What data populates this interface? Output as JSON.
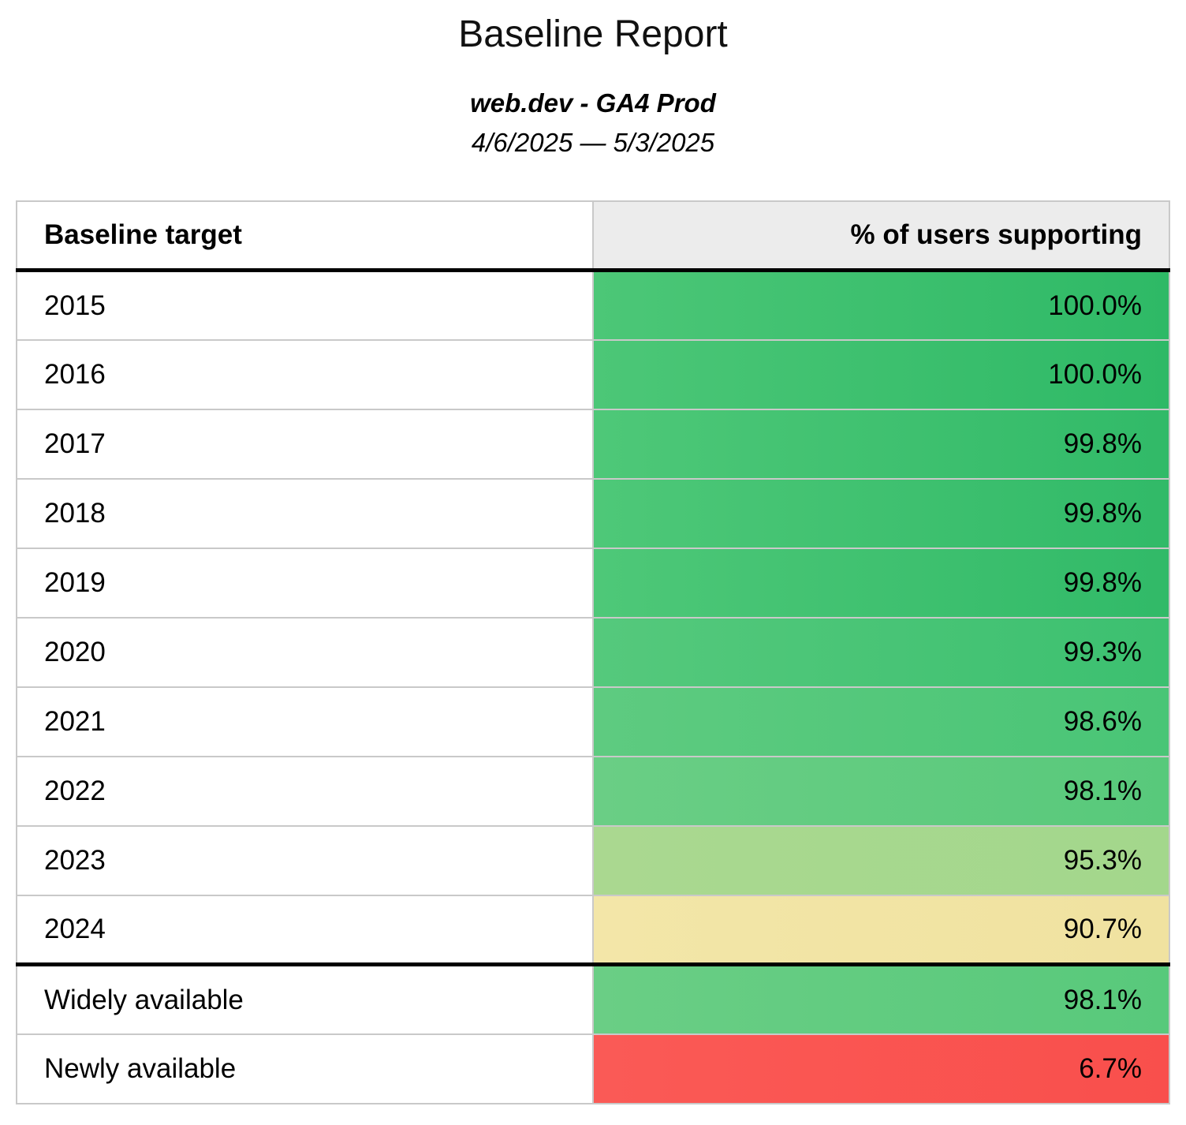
{
  "header": {
    "title": "Baseline Report",
    "subtitle": "web.dev - GA4 Prod",
    "date_range": "4/6/2025 — 5/3/2025"
  },
  "table": {
    "columns": [
      {
        "label": "Baseline target"
      },
      {
        "label": "% of users supporting"
      }
    ],
    "rows": [
      {
        "label": "2015",
        "value": "100.0%",
        "bg": [
          "#4cc777",
          "#2eb966"
        ]
      },
      {
        "label": "2016",
        "value": "100.0%",
        "bg": [
          "#4cc777",
          "#2eb966"
        ]
      },
      {
        "label": "2017",
        "value": "99.8%",
        "bg": [
          "#4ec878",
          "#31ba68"
        ]
      },
      {
        "label": "2018",
        "value": "99.8%",
        "bg": [
          "#4ec878",
          "#31ba68"
        ]
      },
      {
        "label": "2019",
        "value": "99.8%",
        "bg": [
          "#4ec878",
          "#31ba68"
        ]
      },
      {
        "label": "2020",
        "value": "99.3%",
        "bg": [
          "#55c97c",
          "#3cc070"
        ]
      },
      {
        "label": "2021",
        "value": "98.6%",
        "bg": [
          "#5ecb80",
          "#49c576"
        ]
      },
      {
        "label": "2022",
        "value": "98.1%",
        "bg": [
          "#6ace85",
          "#58c97b"
        ]
      },
      {
        "label": "2023",
        "value": "95.3%",
        "bg": [
          "#aad890",
          "#a3d78c"
        ]
      },
      {
        "label": "2024",
        "value": "90.7%",
        "bg": [
          "#f3e6a8",
          "#f0e2a0"
        ]
      },
      {
        "label": "Widely available",
        "value": "98.1%",
        "bg": [
          "#6ace85",
          "#58c97b"
        ]
      },
      {
        "label": "Newly available",
        "value": "6.7%",
        "bg": [
          "#fa5a56",
          "#f94f4c"
        ]
      }
    ]
  },
  "colors": {
    "header_background": "#ececec",
    "grid_border": "#c9c9c9",
    "section_divider": "#000000",
    "green_high": "#3cc26f",
    "yellow_mid": "#f2e5a5",
    "red_low": "#f95551"
  },
  "chart_data": {
    "type": "table",
    "title": "Baseline Report",
    "subtitle": "web.dev - GA4 Prod",
    "date_range": "4/6/2025 — 5/3/2025",
    "columns": [
      "Baseline target",
      "% of users supporting"
    ],
    "categories": [
      "2015",
      "2016",
      "2017",
      "2018",
      "2019",
      "2020",
      "2021",
      "2022",
      "2023",
      "2024",
      "Widely available",
      "Newly available"
    ],
    "values": [
      100.0,
      100.0,
      99.8,
      99.8,
      99.8,
      99.3,
      98.6,
      98.1,
      95.3,
      90.7,
      98.1,
      6.7
    ],
    "value_format": "percent",
    "color_scale": {
      "high_green": "#3cc26f",
      "mid_yellow": "#f2e5a5",
      "low_red": "#f95551"
    },
    "notes": "Cell background color encodes % of users supporting; thick divider separates yearly targets from availability rows"
  }
}
